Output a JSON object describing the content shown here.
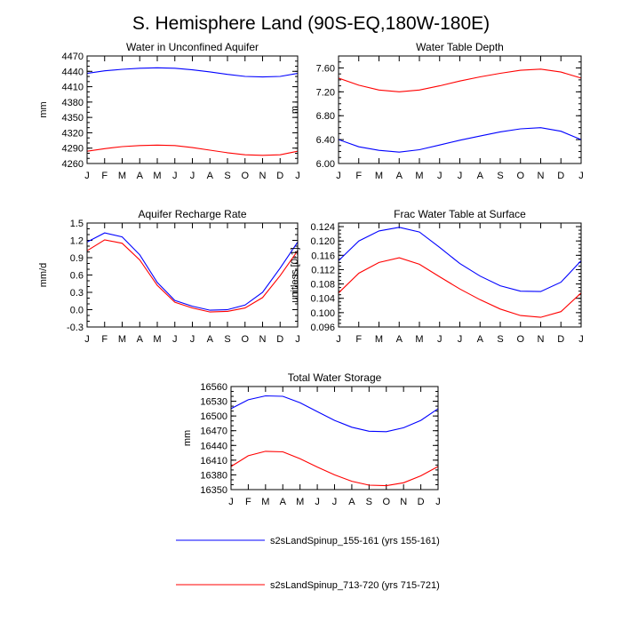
{
  "title": "S. Hemisphere Land (90S-EQ,180W-180E)",
  "months": [
    "J",
    "F",
    "M",
    "A",
    "M",
    "J",
    "J",
    "A",
    "S",
    "O",
    "N",
    "D",
    "J"
  ],
  "legend": [
    {
      "label": "s2sLandSpinup_155-161 (yrs 155-161)",
      "color": "#0000ff"
    },
    {
      "label": "s2sLandSpinup_713-720 (yrs 715-721)",
      "color": "#ff0000"
    }
  ],
  "chart_data": [
    {
      "type": "line",
      "title": "Water in Unconfined Aquifer",
      "ylabel": "mm",
      "ylim": [
        4260,
        4470
      ],
      "yticks": [
        "4260",
        "4290",
        "4320",
        "4350",
        "4380",
        "4410",
        "4440",
        "4470"
      ],
      "yminor": 10,
      "series": [
        {
          "name": "s2sLandSpinup_155-161 (yrs 155-161)",
          "color": "#0000ff",
          "values": [
            4436,
            4441,
            4444,
            4446,
            4447,
            4446,
            4443,
            4439,
            4434,
            4430,
            4429,
            4430,
            4436
          ]
        },
        {
          "name": "s2sLandSpinup_713-720 (yrs 715-721)",
          "color": "#ff0000",
          "values": [
            4284,
            4289,
            4293,
            4295,
            4296,
            4295,
            4291,
            4286,
            4281,
            4277,
            4276,
            4277,
            4284
          ]
        }
      ]
    },
    {
      "type": "line",
      "title": "Water Table Depth",
      "ylabel": "m",
      "ylim": [
        6.0,
        7.8
      ],
      "yticks": [
        "6.00",
        "6.40",
        "6.80",
        "7.20",
        "7.60"
      ],
      "yminor": 0.1,
      "series": [
        {
          "name": "s2sLandSpinup_155-161 (yrs 155-161)",
          "color": "#0000ff",
          "values": [
            6.4,
            6.28,
            6.22,
            6.19,
            6.23,
            6.31,
            6.39,
            6.46,
            6.53,
            6.58,
            6.6,
            6.54,
            6.4
          ]
        },
        {
          "name": "s2sLandSpinup_713-720 (yrs 715-721)",
          "color": "#ff0000",
          "values": [
            7.43,
            7.31,
            7.23,
            7.2,
            7.23,
            7.3,
            7.38,
            7.45,
            7.51,
            7.56,
            7.58,
            7.53,
            7.43
          ]
        }
      ]
    },
    {
      "type": "line",
      "title": "Aquifer Recharge Rate",
      "ylabel": "mm/d",
      "ylim": [
        -0.3,
        1.5
      ],
      "yticks": [
        "-0.3",
        "0.0",
        "0.3",
        "0.6",
        "0.9",
        "1.2",
        "1.5"
      ],
      "yminor": 0.1,
      "series": [
        {
          "name": "s2sLandSpinup_155-161 (yrs 155-161)",
          "color": "#0000ff",
          "values": [
            1.17,
            1.33,
            1.26,
            0.95,
            0.47,
            0.16,
            0.06,
            -0.01,
            0.0,
            0.08,
            0.3,
            0.72,
            1.17
          ]
        },
        {
          "name": "s2sLandSpinup_713-720 (yrs 715-721)",
          "color": "#ff0000",
          "values": [
            1.02,
            1.21,
            1.15,
            0.86,
            0.42,
            0.13,
            0.03,
            -0.04,
            -0.03,
            0.03,
            0.21,
            0.59,
            1.02
          ]
        }
      ]
    },
    {
      "type": "line",
      "title": "Frac Water Table at Surface",
      "ylabel": "unitless [0-1]",
      "ylim": [
        0.096,
        0.125
      ],
      "yticks": [
        "0.096",
        "0.100",
        "0.104",
        "0.108",
        "0.112",
        "0.116",
        "0.120",
        "0.124"
      ],
      "yminor": 0.001,
      "series": [
        {
          "name": "s2sLandSpinup_155-161 (yrs 155-161)",
          "color": "#0000ff",
          "values": [
            0.1145,
            0.12,
            0.1228,
            0.1238,
            0.1225,
            0.1182,
            0.1137,
            0.1102,
            0.1075,
            0.106,
            0.1059,
            0.1085,
            0.1145
          ]
        },
        {
          "name": "s2sLandSpinup_713-720 (yrs 715-721)",
          "color": "#ff0000",
          "values": [
            0.1055,
            0.111,
            0.114,
            0.1153,
            0.1135,
            0.11,
            0.1066,
            0.1036,
            0.101,
            0.0992,
            0.0987,
            0.1003,
            0.1055
          ]
        }
      ]
    },
    {
      "type": "line",
      "title": "Total Water Storage",
      "ylabel": "mm",
      "ylim": [
        16350,
        16560
      ],
      "yticks": [
        "16350",
        "16380",
        "16410",
        "16440",
        "16470",
        "16500",
        "16530",
        "16560"
      ],
      "yminor": 10,
      "series": [
        {
          "name": "s2sLandSpinup_155-161 (yrs 155-161)",
          "color": "#0000ff",
          "values": [
            16515,
            16533,
            16541,
            16540,
            16527,
            16509,
            16491,
            16477,
            16469,
            16468,
            16476,
            16491,
            16515
          ]
        },
        {
          "name": "s2sLandSpinup_713-720 (yrs 715-721)",
          "color": "#ff0000",
          "values": [
            16397,
            16419,
            16428,
            16427,
            16413,
            16396,
            16380,
            16367,
            16359,
            16358,
            16364,
            16378,
            16397
          ]
        }
      ]
    }
  ]
}
